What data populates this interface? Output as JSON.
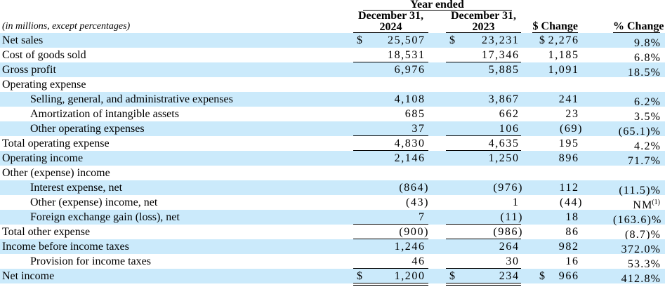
{
  "colors": {
    "band": "#CBEAFB",
    "text": "#000000",
    "rule": "#000000"
  },
  "note": "(in millions, except percentages)",
  "header": {
    "year_ended": "Year ended",
    "period1": {
      "line1": "December 31,",
      "line2": "2024"
    },
    "period2": {
      "line1": "December 31,",
      "line2": "2023"
    },
    "dollar_change": "$ Change",
    "percent_change": "% Change"
  },
  "rows": [
    {
      "label": "Net sales",
      "indent": 0,
      "shaded": true,
      "cur1": "$",
      "v1": "25,507",
      "cur2": "$",
      "v2": "23,231",
      "cur3": "$",
      "v3": "2,276",
      "pct": "9.8%"
    },
    {
      "label": "Cost of goods sold",
      "indent": 0,
      "shaded": false,
      "v1": "18,531",
      "v2": "17,346",
      "v3": "1,185",
      "pct": "6.8%",
      "underline": "single"
    },
    {
      "label": "Gross profit",
      "indent": 0,
      "shaded": true,
      "v1": "6,976",
      "v2": "5,885",
      "v3": "1,091",
      "pct": "18.5%"
    },
    {
      "label": "Operating expense",
      "indent": 0,
      "shaded": false
    },
    {
      "label": "Selling, general, and administrative expenses",
      "indent": 1,
      "shaded": true,
      "v1": "4,108",
      "v2": "3,867",
      "v3": "241",
      "pct": "6.2%"
    },
    {
      "label": "Amortization of intangible assets",
      "indent": 1,
      "shaded": false,
      "v1": "685",
      "v2": "662",
      "v3": "23",
      "pct": "3.5%"
    },
    {
      "label": "Other operating expenses",
      "indent": 1,
      "shaded": true,
      "v1": "37",
      "v2": "106",
      "v3": "(69)",
      "pct": "(65.1)%",
      "underline": "single"
    },
    {
      "label": "Total operating expense",
      "indent": 0,
      "shaded": false,
      "v1": "4,830",
      "v2": "4,635",
      "v3": "195",
      "pct": "4.2%",
      "underline": "single"
    },
    {
      "label": "Operating income",
      "indent": 0,
      "shaded": true,
      "v1": "2,146",
      "v2": "1,250",
      "v3": "896",
      "pct": "71.7%"
    },
    {
      "label": "Other (expense) income",
      "indent": 0,
      "shaded": false
    },
    {
      "label": "Interest expense, net",
      "indent": 1,
      "shaded": true,
      "v1": "(864)",
      "v2": "(976)",
      "v3": "112",
      "pct": "(11.5)%"
    },
    {
      "label": "Other (expense) income, net",
      "indent": 1,
      "shaded": false,
      "v1": "(43)",
      "v2": "1",
      "v3": "(44)",
      "pct": "NM",
      "pct_sup": "(1)"
    },
    {
      "label": "Foreign exchange gain (loss), net",
      "indent": 1,
      "shaded": true,
      "v1": "7",
      "v2": "(11)",
      "v3": "18",
      "pct": "(163.6)%",
      "underline": "single"
    },
    {
      "label": "Total other expense",
      "indent": 0,
      "shaded": false,
      "v1": "(900)",
      "v2": "(986)",
      "v3": "86",
      "pct": "(8.7)%",
      "underline": "single"
    },
    {
      "label": "Income before income taxes",
      "indent": 0,
      "shaded": true,
      "v1": "1,246",
      "v2": "264",
      "v3": "982",
      "pct": "372.0%"
    },
    {
      "label": "Provision for income taxes",
      "indent": 1,
      "shaded": false,
      "v1": "46",
      "v2": "30",
      "v3": "16",
      "pct": "53.3%",
      "underline": "single"
    },
    {
      "label": "Net income",
      "indent": 0,
      "shaded": true,
      "cur1": "$",
      "v1": "1,200",
      "cur2": "$",
      "v2": "234",
      "cur3": "$",
      "v3": "966",
      "pct": "412.8%",
      "underline": "double"
    }
  ]
}
